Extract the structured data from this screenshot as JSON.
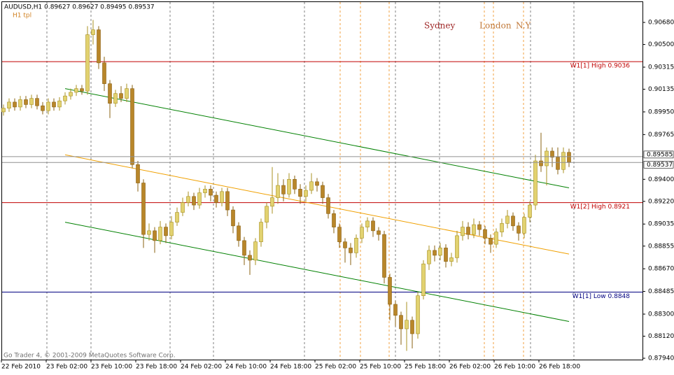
{
  "chart_data": {
    "type": "candlestick",
    "header": "AUDUSD,H1  0.89627 0.89627 0.89495 0.89537",
    "template": "H1 tpl",
    "footer": "Go Trader 4, © 2001-2009 MetaQuotes Software Corp.",
    "sessions": [
      {
        "label": "Sydney",
        "color": "#a02828"
      },
      {
        "label": "London",
        "color": "#c07838"
      },
      {
        "label": "N.Y",
        "color": "#c07838"
      }
    ],
    "categories": [
      "22 Feb 2010",
      null,
      null,
      null,
      null,
      null,
      null,
      null,
      "23 Feb 02:00",
      null,
      null,
      null,
      null,
      null,
      null,
      null,
      "23 Feb 10:00",
      null,
      null,
      null,
      null,
      null,
      null,
      null,
      "23 Feb 18:00",
      null,
      null,
      null,
      null,
      null,
      null,
      null,
      "24 Feb 02:00",
      null,
      null,
      null,
      null,
      null,
      null,
      null,
      "24 Feb 10:00",
      null,
      null,
      null,
      null,
      null,
      null,
      null,
      "24 Feb 18:00",
      null,
      null,
      null,
      null,
      null,
      null,
      null,
      "25 Feb 02:00",
      null,
      null,
      null,
      null,
      null,
      null,
      null,
      "25 Feb 10:00",
      null,
      null,
      null,
      null,
      null,
      null,
      null,
      "25 Feb 18:00",
      null,
      null,
      null,
      null,
      null,
      null,
      null,
      "26 Feb 02:00",
      null,
      null,
      null,
      null,
      null,
      null,
      null,
      "26 Feb 10:00",
      null,
      null,
      null,
      null,
      null,
      null,
      null,
      "26 Feb 18:00",
      null,
      null,
      null,
      null,
      null
    ],
    "open": [
      0.8995,
      0.8998,
      0.9003,
      0.8999,
      0.9005,
      0.9001,
      0.9006,
      0.9,
      0.8996,
      0.9003,
      0.8999,
      0.9004,
      0.9008,
      0.9011,
      0.9014,
      0.9012,
      0.9058,
      0.9062,
      0.9035,
      0.9018,
      0.9002,
      0.901,
      0.9006,
      0.9014,
      0.8952,
      0.8937,
      0.8895,
      0.8898,
      0.889,
      0.8901,
      0.8894,
      0.8905,
      0.8913,
      0.8921,
      0.8926,
      0.8919,
      0.8929,
      0.8932,
      0.8927,
      0.8921,
      0.893,
      0.8915,
      0.8902,
      0.889,
      0.8878,
      0.8874,
      0.8889,
      0.8905,
      0.8918,
      0.8925,
      0.8935,
      0.8928,
      0.894,
      0.8932,
      0.8926,
      0.8931,
      0.8938,
      0.8935,
      0.8925,
      0.8912,
      0.8901,
      0.8889,
      0.8884,
      0.888,
      0.8892,
      0.8901,
      0.8906,
      0.8898,
      0.8895,
      0.886,
      0.8838,
      0.8829,
      0.8818,
      0.8825,
      0.8814,
      0.8845,
      0.8871,
      0.8882,
      0.8878,
      0.8884,
      0.8873,
      0.8876,
      0.8894,
      0.8901,
      0.8895,
      0.8903,
      0.8899,
      0.8892,
      0.8887,
      0.8897,
      0.8904,
      0.891,
      0.8902,
      0.8896,
      0.8909,
      0.8919,
      0.8955,
      0.8951,
      0.8963,
      0.8958,
      0.8948,
      0.8962
    ],
    "high": [
      0.9001,
      0.9006,
      0.9006,
      0.9008,
      0.9008,
      0.9009,
      0.9009,
      0.9003,
      0.9006,
      0.9006,
      0.9007,
      0.9011,
      0.9014,
      0.9017,
      0.9017,
      0.9065,
      0.907,
      0.9065,
      0.904,
      0.9021,
      0.9013,
      0.9016,
      0.9018,
      0.9017,
      0.8955,
      0.894,
      0.8904,
      0.8901,
      0.8906,
      0.8904,
      0.891,
      0.8917,
      0.8925,
      0.893,
      0.8929,
      0.8933,
      0.8935,
      0.8935,
      0.893,
      0.8933,
      0.8933,
      0.8918,
      0.8905,
      0.8893,
      0.8882,
      0.8892,
      0.8908,
      0.8921,
      0.895,
      0.8945,
      0.894,
      0.8945,
      0.8943,
      0.8936,
      0.8935,
      0.8945,
      0.8941,
      0.8938,
      0.8928,
      0.8915,
      0.8904,
      0.8892,
      0.8888,
      0.8895,
      0.8904,
      0.8909,
      0.8909,
      0.8901,
      0.8898,
      0.8863,
      0.8841,
      0.8832,
      0.884,
      0.8828,
      0.8848,
      0.8874,
      0.8886,
      0.8886,
      0.8888,
      0.8887,
      0.888,
      0.8898,
      0.8906,
      0.8905,
      0.8908,
      0.8906,
      0.8902,
      0.8895,
      0.89,
      0.8908,
      0.8915,
      0.8913,
      0.8905,
      0.8912,
      0.8922,
      0.896,
      0.8978,
      0.8966,
      0.8966,
      0.8966,
      0.8966,
      0.8965
    ],
    "low": [
      0.8992,
      0.8995,
      0.8996,
      0.8996,
      0.8998,
      0.8998,
      0.8997,
      0.8993,
      0.8993,
      0.8996,
      0.8996,
      0.9001,
      0.9005,
      0.9008,
      0.9009,
      0.9009,
      0.905,
      0.903,
      0.9012,
      0.899,
      0.8999,
      0.9003,
      0.9003,
      0.8949,
      0.893,
      0.8884,
      0.889,
      0.888,
      0.8887,
      0.8888,
      0.8891,
      0.8902,
      0.891,
      0.8918,
      0.8915,
      0.8916,
      0.8925,
      0.8922,
      0.8917,
      0.8918,
      0.891,
      0.8896,
      0.8885,
      0.887,
      0.8862,
      0.887,
      0.8885,
      0.89,
      0.8912,
      0.892,
      0.8922,
      0.8925,
      0.8928,
      0.892,
      0.8922,
      0.8928,
      0.893,
      0.892,
      0.8908,
      0.8896,
      0.8884,
      0.8872,
      0.887,
      0.8876,
      0.8888,
      0.8897,
      0.8893,
      0.889,
      0.8855,
      0.8825,
      0.882,
      0.8805,
      0.88,
      0.8802,
      0.881,
      0.8842,
      0.8866,
      0.8873,
      0.8874,
      0.8868,
      0.8869,
      0.8872,
      0.889,
      0.8891,
      0.8892,
      0.8894,
      0.8887,
      0.888,
      0.8884,
      0.8893,
      0.89,
      0.8898,
      0.889,
      0.8892,
      0.8905,
      0.8915,
      0.8946,
      0.8935,
      0.895,
      0.8944,
      0.8945,
      0.895
    ],
    "close": [
      0.8998,
      0.9003,
      0.8999,
      0.9005,
      0.9001,
      0.9006,
      0.9,
      0.8996,
      0.9003,
      0.8999,
      0.9004,
      0.9008,
      0.9011,
      0.9014,
      0.9012,
      0.9058,
      0.9062,
      0.9035,
      0.9018,
      0.9002,
      0.901,
      0.9006,
      0.9014,
      0.8952,
      0.8937,
      0.8895,
      0.8898,
      0.889,
      0.8901,
      0.8894,
      0.8905,
      0.8913,
      0.8921,
      0.8926,
      0.8919,
      0.8929,
      0.8932,
      0.8927,
      0.8921,
      0.893,
      0.8915,
      0.8902,
      0.889,
      0.8878,
      0.8874,
      0.8889,
      0.8905,
      0.8918,
      0.8925,
      0.8935,
      0.8928,
      0.894,
      0.8932,
      0.8926,
      0.8931,
      0.8938,
      0.8935,
      0.8925,
      0.8912,
      0.8901,
      0.8889,
      0.8884,
      0.888,
      0.8892,
      0.8901,
      0.8906,
      0.8898,
      0.8895,
      0.886,
      0.8838,
      0.8829,
      0.8818,
      0.8825,
      0.8814,
      0.8845,
      0.8871,
      0.8882,
      0.8878,
      0.8884,
      0.8873,
      0.8876,
      0.8894,
      0.8901,
      0.8895,
      0.8903,
      0.8899,
      0.8892,
      0.8887,
      0.8897,
      0.8904,
      0.891,
      0.8902,
      0.8896,
      0.8909,
      0.8919,
      0.8955,
      0.8951,
      0.8963,
      0.8958,
      0.8948,
      0.8962,
      0.8954
    ],
    "up_color": "#e2d270",
    "down_color": "#b8862a",
    "ylim": [
      0.87906,
      0.90863
    ],
    "yticks": [
      {
        "value": 0.9068,
        "label": "0.90680"
      },
      {
        "value": 0.905,
        "label": "0.90500"
      },
      0.90315,
      0.90135,
      {
        "value": 0.8995,
        "label": "0.89950"
      },
      0.89765,
      {
        "value": 0.894,
        "label": "0.89400"
      },
      {
        "value": 0.8922,
        "label": "0.89220"
      },
      0.89035,
      0.88855,
      {
        "value": 0.8867,
        "label": "0.88670"
      },
      0.88485,
      {
        "value": 0.883,
        "label": "0.88300"
      },
      {
        "value": 0.8812,
        "label": "0.88120"
      },
      {
        "value": 0.8794,
        "label": "0.87940"
      }
    ],
    "price_lines": [
      0.89585,
      0.89537
    ],
    "levels": [
      {
        "label": "W1[1] High 0.9036",
        "value": 0.9036,
        "color": "#c00000"
      },
      {
        "label": "W1[2] High 0.8921",
        "value": 0.8921,
        "color": "#c00000"
      },
      {
        "label": "W1[1] Low 0.8848",
        "value": 0.8848,
        "color": "#000080"
      }
    ],
    "trendlines": [
      {
        "x": [
          11,
          101
        ],
        "y": [
          0.9014,
          0.8933
        ],
        "color": "#008000"
      },
      {
        "x": [
          11,
          101
        ],
        "y": [
          0.896,
          0.8879
        ],
        "color": "#f0a000"
      },
      {
        "x": [
          11,
          101
        ],
        "y": [
          0.8905,
          0.8824
        ],
        "color": "#008000"
      }
    ]
  }
}
